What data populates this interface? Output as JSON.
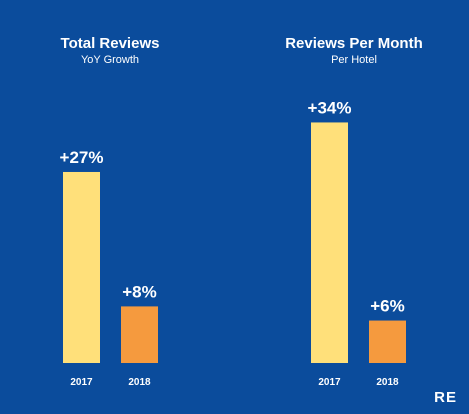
{
  "chart_data": [
    {
      "type": "bar",
      "title": "Total Reviews",
      "subtitle": "YoY Growth",
      "categories": [
        "2017",
        "2018"
      ],
      "values": [
        27,
        8
      ],
      "labels": [
        "+27%",
        "+8%"
      ],
      "colors": [
        "#FFE07A",
        "#F59A3E"
      ],
      "ylim": [
        0,
        40
      ],
      "grid": false
    },
    {
      "type": "bar",
      "title": "Reviews Per Month",
      "subtitle": "Per Hotel",
      "categories": [
        "2017",
        "2018"
      ],
      "values": [
        34,
        6
      ],
      "labels": [
        "+34%",
        "+6%"
      ],
      "colors": [
        "#FFE07A",
        "#F59A3E"
      ],
      "ylim": [
        0,
        40
      ],
      "grid": false
    }
  ],
  "logo_text": "RE"
}
